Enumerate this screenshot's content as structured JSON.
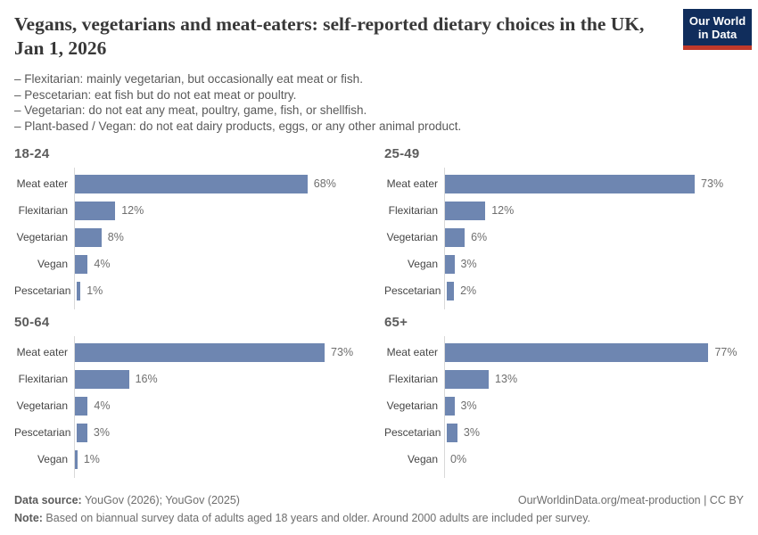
{
  "header": {
    "title": "Vegans, vegetarians and meat-eaters: self-reported dietary choices in the UK, Jan 1, 2026",
    "definitions": [
      "– Flexitarian: mainly vegetarian, but occasionally eat meat or fish.",
      "– Pescetarian: eat fish but do not eat meat or poultry.",
      "– Vegetarian: do not eat any meat, poultry, game, fish, or shellfish.",
      "– Plant-based / Vegan: do not eat dairy products, eggs, or any other animal product."
    ],
    "logo": {
      "line1": "Our World",
      "line2": "in Data",
      "bg_color": "#102d5c",
      "accent_color": "#c0392b"
    }
  },
  "chart_data": [
    {
      "type": "bar",
      "orientation": "horizontal",
      "title": "18-24",
      "categories": [
        "Meat eater",
        "Flexitarian",
        "Vegetarian",
        "Vegan",
        "Pescetarian"
      ],
      "values": [
        68,
        12,
        8,
        4,
        1
      ],
      "value_labels": [
        "68%",
        "12%",
        "8%",
        "4%",
        "1%"
      ],
      "unit": "%",
      "xlim": [
        0,
        100
      ],
      "grid": false,
      "bar_color": "#6e86b1"
    },
    {
      "type": "bar",
      "orientation": "horizontal",
      "title": "25-49",
      "categories": [
        "Meat eater",
        "Flexitarian",
        "Vegetarian",
        "Vegan",
        "Pescetarian"
      ],
      "values": [
        73,
        12,
        6,
        3,
        2
      ],
      "value_labels": [
        "73%",
        "12%",
        "6%",
        "3%",
        "2%"
      ],
      "unit": "%",
      "xlim": [
        0,
        100
      ],
      "grid": false,
      "bar_color": "#6e86b1"
    },
    {
      "type": "bar",
      "orientation": "horizontal",
      "title": "50-64",
      "categories": [
        "Meat eater",
        "Flexitarian",
        "Vegetarian",
        "Pescetarian",
        "Vegan"
      ],
      "values": [
        73,
        16,
        4,
        3,
        1
      ],
      "value_labels": [
        "73%",
        "16%",
        "4%",
        "3%",
        "1%"
      ],
      "unit": "%",
      "xlim": [
        0,
        100
      ],
      "grid": false,
      "bar_color": "#6e86b1"
    },
    {
      "type": "bar",
      "orientation": "horizontal",
      "title": "65+",
      "categories": [
        "Meat eater",
        "Flexitarian",
        "Vegetarian",
        "Pescetarian",
        "Vegan"
      ],
      "values": [
        77,
        13,
        3,
        3,
        0
      ],
      "value_labels": [
        "77%",
        "13%",
        "3%",
        "3%",
        "0%"
      ],
      "unit": "%",
      "xlim": [
        0,
        100
      ],
      "grid": false,
      "bar_color": "#6e86b1"
    }
  ],
  "footer": {
    "source_label": "Data source:",
    "source_text": " YouGov (2026); YouGov (2025)",
    "link_text": "OurWorldinData.org/meat-production | CC BY",
    "note_label": "Note:",
    "note_text": " Based on biannual survey data of adults aged 18 years and older. Around 2000 adults are included per survey."
  }
}
